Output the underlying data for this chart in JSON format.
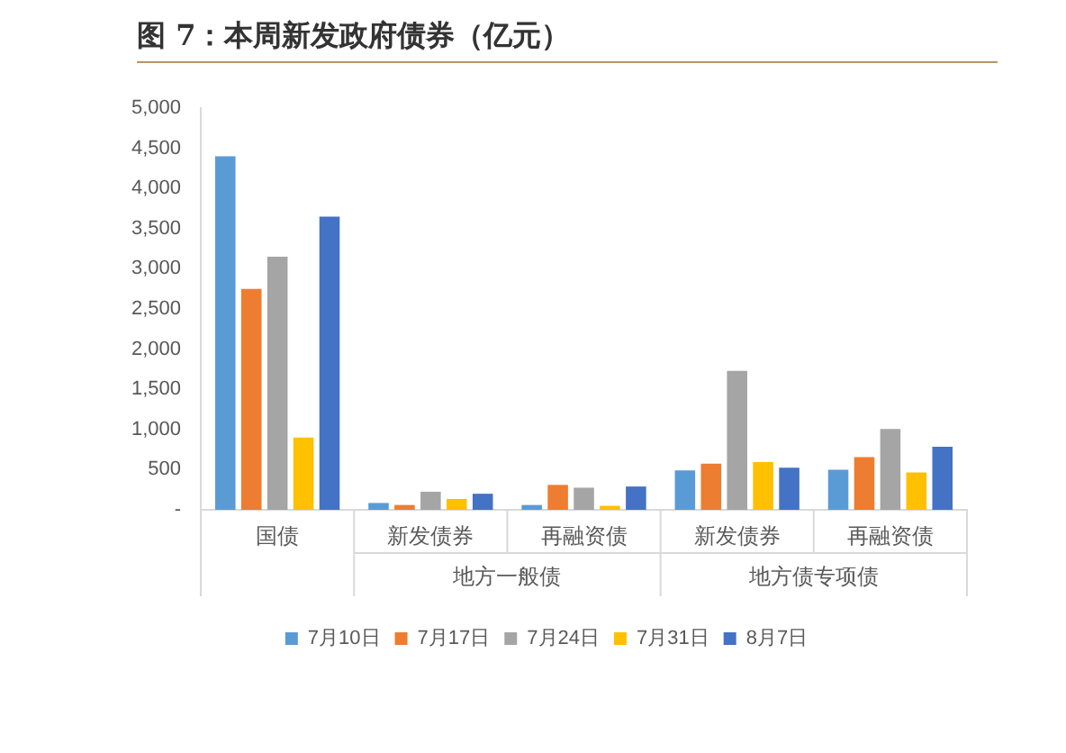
{
  "chart_data": {
    "type": "bar",
    "title": "图 7：本周新发政府债券（亿元）",
    "categories": [
      "国债",
      "新发债券",
      "再融资债",
      "新发债券",
      "再融资债"
    ],
    "series": [
      {
        "name": "7月10日",
        "color": "#5b9bd5",
        "values": [
          4400,
          85,
          60,
          490,
          500
        ]
      },
      {
        "name": "7月17日",
        "color": "#ed7d31",
        "values": [
          2750,
          60,
          310,
          575,
          655
        ]
      },
      {
        "name": "7月24日",
        "color": "#a5a5a5",
        "values": [
          3150,
          225,
          275,
          1730,
          1005
        ]
      },
      {
        "name": "7月31日",
        "color": "#ffc000",
        "values": [
          900,
          135,
          50,
          595,
          465
        ]
      },
      {
        "name": "8月7日",
        "color": "#4472c4",
        "values": [
          3650,
          200,
          290,
          525,
          785
        ]
      }
    ],
    "annotations": [
      "地方一般债",
      "地方债专项债"
    ],
    "ylim": [
      0,
      5000
    ],
    "yticks": [
      {
        "value": 0,
        "label": "-"
      },
      {
        "value": 500,
        "label": "500"
      },
      {
        "value": 1000,
        "label": "1,000"
      },
      {
        "value": 1500,
        "label": "1,500"
      },
      {
        "value": 2000,
        "label": "2,000"
      },
      {
        "value": 2500,
        "label": "2,500"
      },
      {
        "value": 3000,
        "label": "3,000"
      },
      {
        "value": 3500,
        "label": "3,500"
      },
      {
        "value": 4000,
        "label": "4,000"
      },
      {
        "value": 4500,
        "label": "4,500"
      },
      {
        "value": 5000,
        "label": "5,000"
      }
    ],
    "grid": false,
    "legend": "bottom"
  }
}
